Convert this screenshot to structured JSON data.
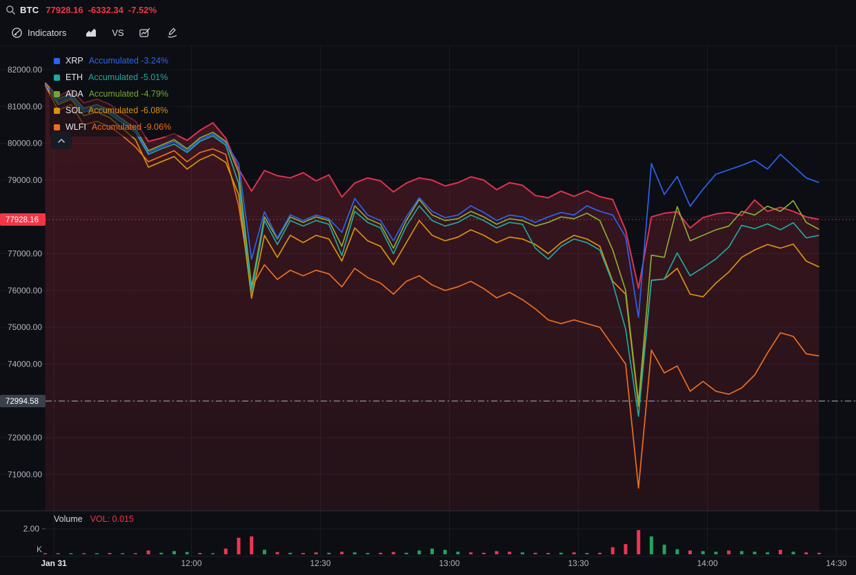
{
  "top_bar": {
    "symbol": "BTC",
    "last_price": "77928.16",
    "change": "-6332.34",
    "change_pct": "-7.52%"
  },
  "toolbar": {
    "indicators_label": "Indicators",
    "vs_label": "VS"
  },
  "legend": {
    "items": [
      {
        "symbol": "XRP",
        "value_text": "Accumulated -3.24%",
        "color": "#2b63f2"
      },
      {
        "symbol": "ETH",
        "value_text": "Accumulated -5.01%",
        "color": "#1fa99d"
      },
      {
        "symbol": "ADA",
        "value_text": "Accumulated -4.79%",
        "color": "#74a636"
      },
      {
        "symbol": "SOL",
        "value_text": "Accumulated -6.08%",
        "color": "#d9920e"
      },
      {
        "symbol": "WLFI",
        "value_text": "Accumulated -9.06%",
        "color": "#ed6e20"
      }
    ]
  },
  "volume_pane": {
    "title": "Volume",
    "vol_text": "VOL: 0.015",
    "scale_label": "2.00",
    "unit_label": "K"
  },
  "chart_data": {
    "type": "line",
    "x_unit": "minutes_from_first_tick",
    "x_minutes": [
      -2,
      1,
      4,
      7,
      10,
      13,
      16,
      19,
      22,
      25,
      28,
      31,
      34,
      37,
      40,
      43,
      46,
      49,
      52,
      55,
      58,
      61,
      64,
      67,
      70,
      73,
      76,
      79,
      82,
      85,
      88,
      91,
      94,
      97,
      100,
      103,
      106,
      109,
      112,
      115,
      118,
      121,
      124,
      127,
      130,
      133,
      136,
      139,
      142,
      145,
      148,
      151,
      154,
      157,
      160,
      163,
      166,
      169,
      172,
      175,
      178
    ],
    "series": [
      {
        "name": "BTC",
        "style": "area",
        "color": "#dd3350",
        "values": [
          81650,
          81280,
          81450,
          81100,
          81200,
          81060,
          80820,
          80600,
          80050,
          80140,
          80260,
          80080,
          80350,
          80560,
          80140,
          79300,
          78700,
          79260,
          79120,
          79060,
          79200,
          78980,
          79140,
          78540,
          78920,
          79060,
          78980,
          78680,
          78920,
          79060,
          79000,
          78840,
          78930,
          79090,
          79000,
          78740,
          78930,
          78860,
          78580,
          78520,
          78700,
          78560,
          78710,
          78550,
          78470,
          77640,
          76060,
          78000,
          78100,
          78140,
          77700,
          77980,
          78080,
          78120,
          78040,
          78460,
          78150,
          78260,
          78150,
          78000,
          77930
        ]
      },
      {
        "name": "XRP",
        "style": "line",
        "color": "#2b63f2",
        "values": [
          81600,
          81150,
          81300,
          80900,
          81000,
          80850,
          80600,
          80350,
          79750,
          79900,
          80050,
          79800,
          80100,
          80250,
          80000,
          79450,
          76850,
          78140,
          77430,
          78060,
          77900,
          78050,
          77950,
          77580,
          78500,
          78050,
          77900,
          77350,
          78000,
          78520,
          78150,
          77980,
          78050,
          78300,
          78120,
          77900,
          78050,
          78000,
          77850,
          78000,
          78120,
          78050,
          78300,
          78150,
          78050,
          77450,
          75270,
          79450,
          78610,
          79100,
          78290,
          78750,
          79160,
          79280,
          79400,
          79540,
          79300,
          79700,
          79380,
          79060,
          78930
        ]
      },
      {
        "name": "ETH",
        "style": "line",
        "color": "#1fa99d",
        "values": [
          81620,
          81100,
          81250,
          80850,
          80950,
          80800,
          80550,
          80300,
          79700,
          79850,
          79980,
          79750,
          80050,
          80200,
          79950,
          78900,
          75950,
          77900,
          77250,
          77900,
          77750,
          77900,
          77800,
          76950,
          78150,
          77850,
          77700,
          77000,
          77750,
          78300,
          77900,
          77750,
          77850,
          78050,
          77900,
          77700,
          77850,
          77800,
          77150,
          76850,
          77200,
          77400,
          77300,
          77100,
          76200,
          74950,
          72580,
          76270,
          76310,
          77020,
          76400,
          76620,
          76860,
          77180,
          77770,
          77680,
          77810,
          77650,
          77840,
          77430,
          77500
        ]
      },
      {
        "name": "ADA",
        "style": "line",
        "color": "#8aab35",
        "values": [
          81630,
          81200,
          81350,
          80950,
          81050,
          80900,
          80650,
          80400,
          79800,
          79950,
          80100,
          79850,
          80150,
          80300,
          80050,
          79200,
          76100,
          78000,
          77400,
          78000,
          77850,
          78000,
          77900,
          77200,
          78300,
          77950,
          77800,
          77150,
          77900,
          78470,
          78050,
          77900,
          77950,
          78150,
          78000,
          77800,
          77950,
          77900,
          77750,
          77850,
          78000,
          77950,
          78100,
          77900,
          77100,
          76000,
          72950,
          76960,
          76900,
          78280,
          77350,
          77500,
          77650,
          77750,
          78150,
          78050,
          78290,
          78150,
          78440,
          77850,
          77660
        ]
      },
      {
        "name": "SOL",
        "style": "line",
        "color": "#d9920e",
        "values": [
          81600,
          81050,
          81200,
          80750,
          80850,
          80700,
          80400,
          80100,
          79350,
          79500,
          79640,
          79300,
          79550,
          79700,
          79480,
          78600,
          75790,
          77500,
          76900,
          77500,
          77300,
          77500,
          77400,
          76800,
          77700,
          77350,
          77200,
          76700,
          77300,
          77900,
          77500,
          77350,
          77450,
          77650,
          77500,
          77300,
          77450,
          77400,
          77250,
          77000,
          77300,
          77500,
          77400,
          77200,
          76250,
          75900,
          72850,
          76280,
          76310,
          76600,
          75900,
          75830,
          76200,
          76500,
          76900,
          77100,
          77250,
          77150,
          77260,
          76800,
          76640
        ]
      },
      {
        "name": "WLFI",
        "style": "line",
        "color": "#ed6e20",
        "values": [
          81580,
          80900,
          81050,
          80500,
          80600,
          80450,
          80200,
          79900,
          79500,
          79650,
          79800,
          79500,
          79750,
          79850,
          79700,
          78300,
          76080,
          76700,
          76300,
          76550,
          76400,
          76550,
          76450,
          76100,
          76600,
          76350,
          76200,
          75900,
          76250,
          76400,
          76150,
          76000,
          76100,
          76250,
          76050,
          75800,
          75950,
          75750,
          75500,
          75200,
          75100,
          75200,
          75100,
          75000,
          74500,
          74000,
          70630,
          74380,
          73760,
          73950,
          73260,
          73530,
          73260,
          73180,
          73350,
          73700,
          74300,
          74850,
          74750,
          74280,
          74220
        ]
      }
    ],
    "volume": {
      "unit": "K",
      "values": [
        0.08,
        0.05,
        0.06,
        0.05,
        0.06,
        0.1,
        0.08,
        0.06,
        0.3,
        0.12,
        0.25,
        0.18,
        0.1,
        0.08,
        0.45,
        1.3,
        1.4,
        0.35,
        0.18,
        0.12,
        0.1,
        0.15,
        0.12,
        0.2,
        0.15,
        0.1,
        0.12,
        0.18,
        0.12,
        0.3,
        0.45,
        0.35,
        0.2,
        0.15,
        0.12,
        0.25,
        0.2,
        0.15,
        0.12,
        0.1,
        0.12,
        0.15,
        0.1,
        0.12,
        0.55,
        0.8,
        1.9,
        1.4,
        0.75,
        0.4,
        0.3,
        0.25,
        0.2,
        0.3,
        0.25,
        0.2,
        0.15,
        0.35,
        0.2,
        0.15,
        0.12
      ],
      "colors": [
        "r",
        "r",
        "g",
        "r",
        "g",
        "r",
        "g",
        "r",
        "r",
        "g",
        "g",
        "g",
        "r",
        "g",
        "r",
        "r",
        "r",
        "g",
        "r",
        "g",
        "r",
        "r",
        "g",
        "r",
        "g",
        "g",
        "r",
        "r",
        "g",
        "g",
        "g",
        "g",
        "g",
        "r",
        "r",
        "r",
        "r",
        "g",
        "r",
        "r",
        "g",
        "r",
        "g",
        "r",
        "r",
        "r",
        "r",
        "g",
        "g",
        "g",
        "r",
        "g",
        "g",
        "r",
        "g",
        "g",
        "g",
        "r",
        "g",
        "r",
        "r"
      ],
      "bar_up_color": "#1fa35d",
      "bar_down_color": "#ee3452",
      "axis_label": "2.00",
      "axis_value": 2.0,
      "unit_label": "K"
    },
    "price_lines": [
      {
        "value": 77928.16,
        "style": "dotted",
        "color": "#f23645"
      },
      {
        "value": 72994.58,
        "style": "dashdot",
        "color": "#8d93a3"
      }
    ],
    "price_tags": [
      {
        "text": "77928.16",
        "value": 77928.16,
        "bg": "#f23645",
        "fg": "#ffffff"
      },
      {
        "text": "72994.58",
        "value": 72994.58,
        "bg": "#3a3f4c",
        "fg": "#ffffff"
      }
    ],
    "y_axis_labels": [
      {
        "text": "82000.00",
        "value": 82000
      },
      {
        "text": "81000.00",
        "value": 81000
      },
      {
        "text": "80000.00",
        "value": 80000
      },
      {
        "text": "79000.00",
        "value": 79000
      },
      {
        "text": "77000.00",
        "value": 77000
      },
      {
        "text": "76000.00",
        "value": 76000
      },
      {
        "text": "75000.00",
        "value": 75000
      },
      {
        "text": "74000.00",
        "value": 74000
      },
      {
        "text": "72000.00",
        "value": 72000
      },
      {
        "text": "71000.00",
        "value": 71000
      }
    ],
    "y_gridline_values": [
      82000,
      81000,
      80000,
      79000,
      78000,
      77000,
      76000,
      75000,
      74000,
      73000,
      72000,
      71000
    ],
    "ylim": [
      70000,
      82640
    ],
    "time_ticks": [
      {
        "label": "Jan 31",
        "minute": 0,
        "emphasis": true
      },
      {
        "label": "12:00",
        "minute": 32,
        "emphasis": false
      },
      {
        "label": "12:30",
        "minute": 62,
        "emphasis": false
      },
      {
        "label": "13:00",
        "minute": 92,
        "emphasis": false
      },
      {
        "label": "13:30",
        "minute": 122,
        "emphasis": false
      },
      {
        "label": "14:00",
        "minute": 152,
        "emphasis": false
      },
      {
        "label": "14:30",
        "minute": 182,
        "emphasis": false
      }
    ],
    "grid": true,
    "legend_position": "top-left"
  },
  "colors": {
    "background": "#0c0e13",
    "grid": "#181d27",
    "axis_text": "#b2b5be",
    "axis_text_emphasis": "#e8eaef",
    "accent_red": "#f23645",
    "separator": "#2c303b"
  }
}
